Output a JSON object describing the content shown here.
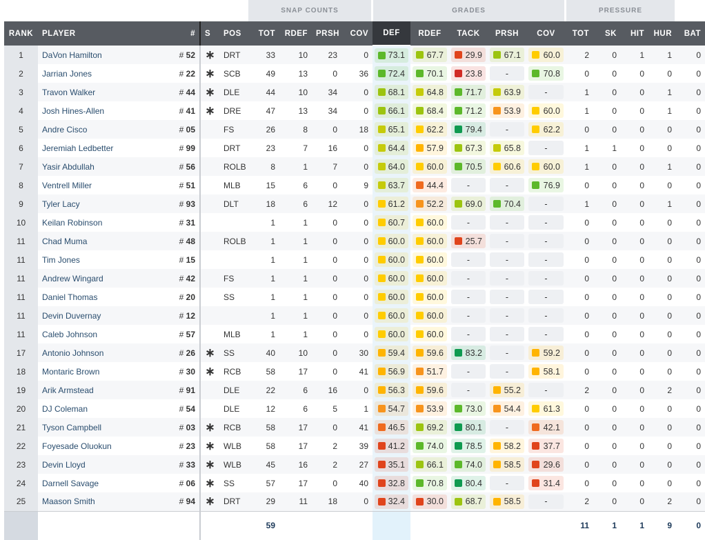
{
  "groups": {
    "snap": "SNAP COUNTS",
    "grades": "GRADES",
    "pressure": "PRESSURE"
  },
  "headers": [
    "RANK",
    "PLAYER",
    "#",
    "S",
    "POS",
    "TOT",
    "RDEF",
    "PRSH",
    "COV",
    "DEF",
    "RDEF",
    "TACK",
    "PRSH",
    "COV",
    "TOT",
    "SK",
    "HIT",
    "HUR",
    "BAT"
  ],
  "starter_icon": "asterisk-icon",
  "number_prefix": "#",
  "grade_colors": {
    "elite": "#0f9a50",
    "high": "#5cb82a",
    "good": "#9cc410",
    "above": "#c5cb0a",
    "avg": "#ffcc00",
    "below": "#ffb400",
    "low": "#f7941d",
    "poor": "#ef6a1f",
    "bad": "#e0441c",
    "worst": "#d12a25"
  },
  "rows": [
    [
      "1",
      "DaVon Hamilton",
      "52",
      "*",
      "DRT",
      "33",
      "10",
      "23",
      "0",
      "73.1",
      "67.7",
      "29.9",
      "67.1",
      "60.0",
      "2",
      "0",
      "1",
      "1",
      "0"
    ],
    [
      "2",
      "Jarrian Jones",
      "22",
      "*",
      "SCB",
      "49",
      "13",
      "0",
      "36",
      "72.4",
      "70.1",
      "23.8",
      "-",
      "70.8",
      "0",
      "0",
      "0",
      "0",
      "0"
    ],
    [
      "3",
      "Travon Walker",
      "44",
      "*",
      "DLE",
      "44",
      "10",
      "34",
      "0",
      "68.1",
      "64.8",
      "71.7",
      "63.9",
      "-",
      "1",
      "0",
      "0",
      "1",
      "0"
    ],
    [
      "4",
      "Josh Hines-Allen",
      "41",
      "*",
      "DRE",
      "47",
      "13",
      "34",
      "0",
      "66.1",
      "68.4",
      "71.2",
      "53.9",
      "60.0",
      "1",
      "0",
      "0",
      "1",
      "0"
    ],
    [
      "5",
      "Andre Cisco",
      "05",
      "",
      "FS",
      "26",
      "8",
      "0",
      "18",
      "65.1",
      "62.2",
      "79.4",
      "-",
      "62.2",
      "0",
      "0",
      "0",
      "0",
      "0"
    ],
    [
      "6",
      "Jeremiah Ledbetter",
      "99",
      "",
      "DRT",
      "23",
      "7",
      "16",
      "0",
      "64.4",
      "57.9",
      "67.3",
      "65.8",
      "-",
      "1",
      "1",
      "0",
      "0",
      "0"
    ],
    [
      "7",
      "Yasir Abdullah",
      "56",
      "",
      "ROLB",
      "8",
      "1",
      "7",
      "0",
      "64.0",
      "60.0",
      "70.5",
      "60.6",
      "60.0",
      "1",
      "0",
      "0",
      "1",
      "0"
    ],
    [
      "8",
      "Ventrell Miller",
      "51",
      "",
      "MLB",
      "15",
      "6",
      "0",
      "9",
      "63.7",
      "44.4",
      "-",
      "-",
      "76.9",
      "0",
      "0",
      "0",
      "0",
      "0"
    ],
    [
      "9",
      "Tyler Lacy",
      "93",
      "",
      "DLT",
      "18",
      "6",
      "12",
      "0",
      "61.2",
      "52.2",
      "69.0",
      "70.4",
      "-",
      "1",
      "0",
      "0",
      "1",
      "0"
    ],
    [
      "10",
      "Keilan Robinson",
      "31",
      "",
      "",
      "1",
      "1",
      "0",
      "0",
      "60.7",
      "60.0",
      "-",
      "-",
      "-",
      "0",
      "0",
      "0",
      "0",
      "0"
    ],
    [
      "11",
      "Chad Muma",
      "48",
      "",
      "ROLB",
      "1",
      "1",
      "0",
      "0",
      "60.0",
      "60.0",
      "25.7",
      "-",
      "-",
      "0",
      "0",
      "0",
      "0",
      "0"
    ],
    [
      "11",
      "Tim Jones",
      "15",
      "",
      "",
      "1",
      "1",
      "0",
      "0",
      "60.0",
      "60.0",
      "-",
      "-",
      "-",
      "0",
      "0",
      "0",
      "0",
      "0"
    ],
    [
      "11",
      "Andrew Wingard",
      "42",
      "",
      "FS",
      "1",
      "1",
      "0",
      "0",
      "60.0",
      "60.0",
      "-",
      "-",
      "-",
      "0",
      "0",
      "0",
      "0",
      "0"
    ],
    [
      "11",
      "Daniel Thomas",
      "20",
      "",
      "SS",
      "1",
      "1",
      "0",
      "0",
      "60.0",
      "60.0",
      "-",
      "-",
      "-",
      "0",
      "0",
      "0",
      "0",
      "0"
    ],
    [
      "11",
      "Devin Duvernay",
      "12",
      "",
      "",
      "1",
      "1",
      "0",
      "0",
      "60.0",
      "60.0",
      "-",
      "-",
      "-",
      "0",
      "0",
      "0",
      "0",
      "0"
    ],
    [
      "11",
      "Caleb Johnson",
      "57",
      "",
      "MLB",
      "1",
      "1",
      "0",
      "0",
      "60.0",
      "60.0",
      "-",
      "-",
      "-",
      "0",
      "0",
      "0",
      "0",
      "0"
    ],
    [
      "17",
      "Antonio Johnson",
      "26",
      "*",
      "SS",
      "40",
      "10",
      "0",
      "30",
      "59.4",
      "59.6",
      "83.2",
      "-",
      "59.2",
      "0",
      "0",
      "0",
      "0",
      "0"
    ],
    [
      "18",
      "Montaric Brown",
      "30",
      "*",
      "RCB",
      "58",
      "17",
      "0",
      "41",
      "56.9",
      "51.7",
      "-",
      "-",
      "58.1",
      "0",
      "0",
      "0",
      "0",
      "0"
    ],
    [
      "19",
      "Arik Armstead",
      "91",
      "",
      "DLE",
      "22",
      "6",
      "16",
      "0",
      "56.3",
      "59.6",
      "-",
      "55.2",
      "-",
      "2",
      "0",
      "0",
      "2",
      "0"
    ],
    [
      "20",
      "DJ Coleman",
      "54",
      "",
      "DLE",
      "12",
      "6",
      "5",
      "1",
      "54.7",
      "53.9",
      "73.0",
      "54.4",
      "61.3",
      "0",
      "0",
      "0",
      "0",
      "0"
    ],
    [
      "21",
      "Tyson Campbell",
      "03",
      "*",
      "RCB",
      "58",
      "17",
      "0",
      "41",
      "46.5",
      "69.2",
      "80.1",
      "-",
      "42.1",
      "0",
      "0",
      "0",
      "0",
      "0"
    ],
    [
      "22",
      "Foyesade Oluokun",
      "23",
      "*",
      "WLB",
      "58",
      "17",
      "2",
      "39",
      "41.2",
      "74.0",
      "78.5",
      "58.2",
      "37.7",
      "0",
      "0",
      "0",
      "0",
      "0"
    ],
    [
      "23",
      "Devin Lloyd",
      "33",
      "*",
      "WLB",
      "45",
      "16",
      "2",
      "27",
      "35.1",
      "66.1",
      "74.0",
      "58.5",
      "29.6",
      "0",
      "0",
      "0",
      "0",
      "0"
    ],
    [
      "24",
      "Darnell Savage",
      "06",
      "*",
      "SS",
      "57",
      "17",
      "0",
      "40",
      "32.8",
      "70.8",
      "80.4",
      "-",
      "31.4",
      "0",
      "0",
      "0",
      "0",
      "0"
    ],
    [
      "25",
      "Maason Smith",
      "94",
      "*",
      "DRT",
      "29",
      "11",
      "18",
      "0",
      "32.4",
      "30.0",
      "68.7",
      "58.5",
      "-",
      "2",
      "0",
      "0",
      "2",
      "0"
    ]
  ],
  "totals": {
    "snap_tot": "59",
    "pressure": [
      "11",
      "1",
      "1",
      "9",
      "0"
    ]
  }
}
